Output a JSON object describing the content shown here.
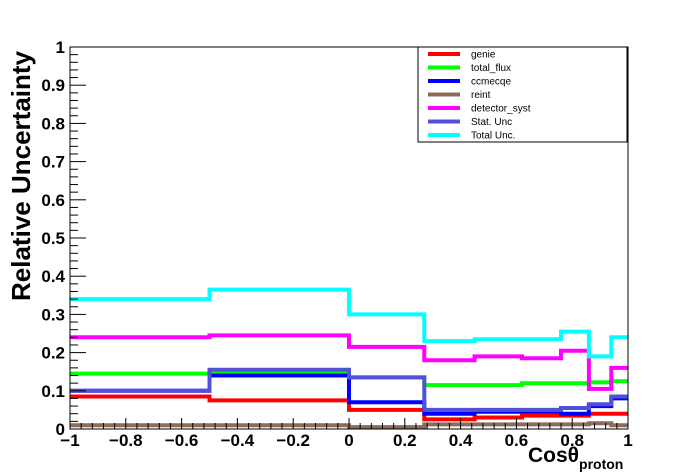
{
  "chart_data": {
    "type": "line",
    "style": "step-histogram",
    "title": "",
    "xlabel": "Cosθ",
    "xlabel_subscript": "proton",
    "ylabel": "Relative Uncertainty",
    "xlim": [
      -1,
      1
    ],
    "ylim": [
      0,
      1
    ],
    "x_ticks": [
      -1,
      -0.8,
      -0.6,
      -0.4,
      -0.2,
      0,
      0.2,
      0.4,
      0.6,
      0.8,
      1
    ],
    "x_tick_labels": [
      "−1",
      "−0.8",
      "−0.6",
      "−0.4",
      "−0.2",
      "0",
      "0.2",
      "0.4",
      "0.6",
      "0.8",
      "1"
    ],
    "y_ticks": [
      0,
      0.1,
      0.2,
      0.3,
      0.4,
      0.5,
      0.6,
      0.7,
      0.8,
      0.9,
      1
    ],
    "y_tick_labels": [
      "0",
      "0.1",
      "0.2",
      "0.3",
      "0.4",
      "0.5",
      "0.6",
      "0.7",
      "0.8",
      "0.9",
      "1"
    ],
    "bin_edges": [
      -1,
      -0.5,
      0,
      0.27,
      0.45,
      0.62,
      0.76,
      0.86,
      0.94,
      1
    ],
    "legend_position": "top-right",
    "series": [
      {
        "name": "genie",
        "color": "#ff0000",
        "values": [
          0.085,
          0.075,
          0.05,
          0.025,
          0.03,
          0.035,
          0.035,
          0.04,
          0.04
        ]
      },
      {
        "name": "total_flux",
        "color": "#00ff00",
        "values": [
          0.145,
          0.145,
          0.135,
          0.115,
          0.115,
          0.12,
          0.12,
          0.122,
          0.125
        ]
      },
      {
        "name": "ccmecqe",
        "color": "#0000ff",
        "values": [
          0.1,
          0.14,
          0.07,
          0.04,
          0.045,
          0.045,
          0.04,
          0.06,
          0.08
        ]
      },
      {
        "name": "reint",
        "color": "#8b6b5a",
        "values": [
          0.01,
          0.01,
          0.005,
          0.012,
          0.012,
          0.012,
          0.012,
          0.015,
          0.01
        ]
      },
      {
        "name": "detector_syst",
        "color": "#ff00ff",
        "values": [
          0.24,
          0.245,
          0.215,
          0.18,
          0.19,
          0.185,
          0.205,
          0.105,
          0.16
        ]
      },
      {
        "name": "Stat. Unc",
        "color": "#5050d8",
        "values": [
          0.1,
          0.155,
          0.135,
          0.05,
          0.05,
          0.05,
          0.055,
          0.065,
          0.085
        ]
      },
      {
        "name": "Total Unc.",
        "color": "#00ffff",
        "values": [
          0.34,
          0.365,
          0.3,
          0.23,
          0.235,
          0.235,
          0.255,
          0.19,
          0.24
        ]
      }
    ]
  }
}
